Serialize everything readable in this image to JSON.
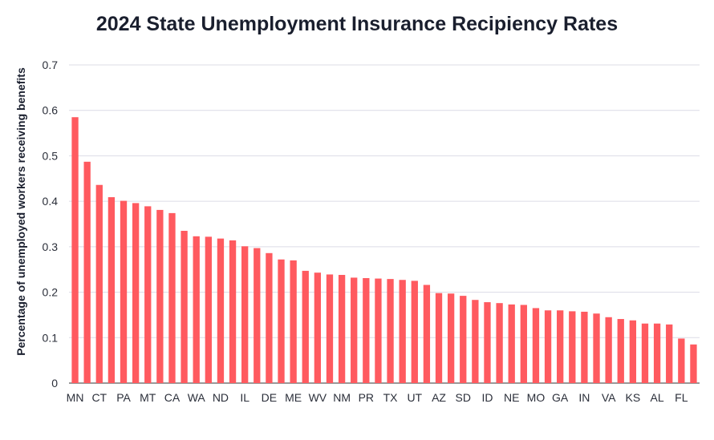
{
  "chart_data": {
    "type": "bar",
    "title": "2024 State Unemployment Insurance Recipiency Rates",
    "ylabel": "Percentage of unemployed workers receiving benefits",
    "xlabel": "",
    "ylim": [
      0,
      0.7
    ],
    "yticks": [
      0,
      0.1,
      0.2,
      0.3,
      0.4,
      0.5,
      0.6,
      0.7
    ],
    "grid": true,
    "bar_color": "#ff5a5f",
    "categories": [
      "MN",
      "",
      "CT",
      "",
      "PA",
      "",
      "MT",
      "",
      "CA",
      "",
      "WA",
      "",
      "ND",
      "",
      "IL",
      "",
      "DE",
      "",
      "ME",
      "",
      "WV",
      "",
      "NM",
      "",
      "PR",
      "",
      "TX",
      "",
      "UT",
      "",
      "AZ",
      "",
      "SD",
      "",
      "ID",
      "",
      "NE",
      "",
      "MO",
      "",
      "GA",
      "",
      "IN",
      "",
      "VA",
      "",
      "KS",
      "",
      "AL",
      "",
      "FL",
      ""
    ],
    "values": [
      0.585,
      0.487,
      0.436,
      0.409,
      0.401,
      0.396,
      0.389,
      0.381,
      0.374,
      0.335,
      0.323,
      0.322,
      0.318,
      0.314,
      0.301,
      0.297,
      0.286,
      0.272,
      0.27,
      0.247,
      0.243,
      0.239,
      0.238,
      0.232,
      0.231,
      0.23,
      0.229,
      0.227,
      0.225,
      0.216,
      0.198,
      0.197,
      0.192,
      0.183,
      0.178,
      0.176,
      0.173,
      0.172,
      0.165,
      0.16,
      0.16,
      0.158,
      0.157,
      0.153,
      0.145,
      0.141,
      0.138,
      0.131,
      0.131,
      0.129,
      0.098,
      0.085
    ]
  }
}
